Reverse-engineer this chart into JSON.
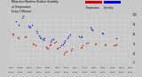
{
  "title_line1": "Milwaukee Weather Outdoor Humidity",
  "title_line2": "vs Temperature",
  "title_line3": "Every 5 Minutes",
  "background_color": "#c8c8c8",
  "plot_bg_color": "#c8c8c8",
  "grid_color": "#ffffff",
  "blue_points": [
    [
      0.04,
      0.88
    ],
    [
      0.06,
      0.8
    ],
    [
      0.09,
      0.95
    ],
    [
      0.1,
      0.98
    ],
    [
      0.14,
      0.78
    ],
    [
      0.15,
      0.74
    ],
    [
      0.16,
      0.76
    ],
    [
      0.17,
      0.8
    ],
    [
      0.21,
      0.68
    ],
    [
      0.22,
      0.63
    ],
    [
      0.23,
      0.59
    ],
    [
      0.24,
      0.55
    ],
    [
      0.25,
      0.52
    ],
    [
      0.26,
      0.5
    ],
    [
      0.27,
      0.48
    ],
    [
      0.28,
      0.52
    ],
    [
      0.33,
      0.46
    ],
    [
      0.34,
      0.48
    ],
    [
      0.35,
      0.5
    ],
    [
      0.42,
      0.37
    ],
    [
      0.43,
      0.4
    ],
    [
      0.44,
      0.44
    ],
    [
      0.45,
      0.47
    ],
    [
      0.47,
      0.52
    ],
    [
      0.48,
      0.57
    ],
    [
      0.49,
      0.6
    ],
    [
      0.57,
      0.57
    ],
    [
      0.58,
      0.54
    ],
    [
      0.59,
      0.57
    ],
    [
      0.66,
      0.74
    ],
    [
      0.67,
      0.72
    ],
    [
      0.68,
      0.7
    ],
    [
      0.76,
      0.63
    ],
    [
      0.77,
      0.61
    ],
    [
      0.88,
      0.52
    ]
  ],
  "red_points": [
    [
      0.01,
      0.62
    ],
    [
      0.02,
      0.6
    ],
    [
      0.05,
      0.54
    ],
    [
      0.06,
      0.52
    ],
    [
      0.11,
      0.54
    ],
    [
      0.12,
      0.57
    ],
    [
      0.18,
      0.42
    ],
    [
      0.19,
      0.4
    ],
    [
      0.2,
      0.38
    ],
    [
      0.29,
      0.34
    ],
    [
      0.3,
      0.32
    ],
    [
      0.31,
      0.3
    ],
    [
      0.32,
      0.37
    ],
    [
      0.33,
      0.4
    ],
    [
      0.36,
      0.44
    ],
    [
      0.37,
      0.46
    ],
    [
      0.38,
      0.3
    ],
    [
      0.39,
      0.32
    ],
    [
      0.4,
      0.34
    ],
    [
      0.44,
      0.2
    ],
    [
      0.45,
      0.22
    ],
    [
      0.46,
      0.24
    ],
    [
      0.5,
      0.27
    ],
    [
      0.51,
      0.3
    ],
    [
      0.58,
      0.32
    ],
    [
      0.59,
      0.34
    ],
    [
      0.6,
      0.37
    ],
    [
      0.63,
      0.42
    ],
    [
      0.64,
      0.44
    ],
    [
      0.7,
      0.4
    ],
    [
      0.71,
      0.42
    ],
    [
      0.78,
      0.38
    ],
    [
      0.79,
      0.4
    ],
    [
      0.86,
      0.37
    ],
    [
      0.87,
      0.38
    ],
    [
      0.88,
      0.4
    ]
  ],
  "legend_label_red": "Temperature",
  "legend_label_blue": "Humidity",
  "dot_size": 1.0,
  "red_color": "#cc0000",
  "blue_color": "#0000cc",
  "right_labels": [
    "100",
    "80",
    "60",
    "40",
    "20",
    "0"
  ],
  "date_labels": [
    "01/14",
    "01/15",
    "01/16",
    "01/17",
    "01/18",
    "01/19",
    "01/20",
    "01/21",
    "01/22",
    "01/23",
    "01/24",
    "01/25",
    "01/26",
    "01/27"
  ]
}
